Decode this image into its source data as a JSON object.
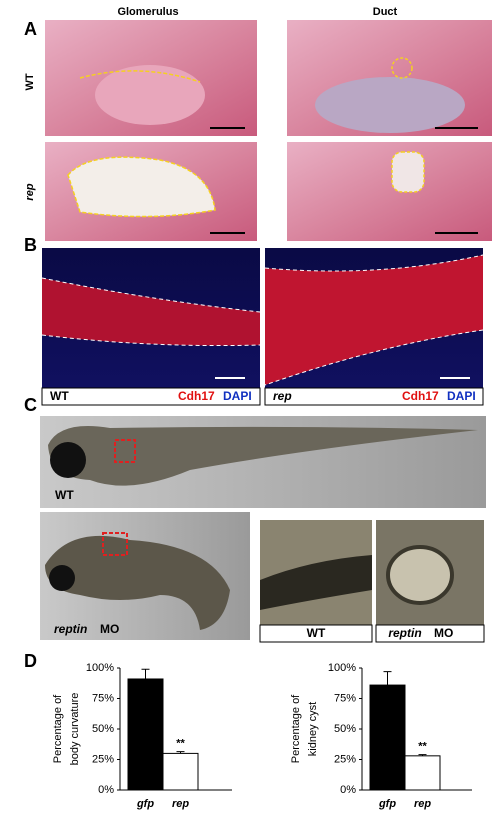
{
  "panels": {
    "A": {
      "label": "A",
      "columns": [
        "Glomerulus",
        "Duct"
      ],
      "rows": [
        "WT",
        "rep"
      ]
    },
    "B": {
      "label": "B",
      "captions": [
        {
          "genotype": "WT",
          "stain1": "Cdh17",
          "stain2": "DAPI"
        },
        {
          "genotype": "rep",
          "stain1": "Cdh17",
          "stain2": "DAPI"
        }
      ]
    },
    "C": {
      "label": "C",
      "wt": "WT",
      "mo_gene": "reptin",
      "mo_suffix": "MO",
      "inset_captions": [
        {
          "gene": "WT"
        },
        {
          "gene": "reptin",
          "suffix": "MO"
        }
      ]
    },
    "D": {
      "label": "D"
    }
  },
  "chart_data": [
    {
      "type": "bar",
      "y_label": [
        "Percentage of",
        "body curvature"
      ],
      "categories": [
        "gfp",
        "rep"
      ],
      "values": [
        91,
        30
      ],
      "errors": [
        8,
        1.5
      ],
      "colors": [
        "#000000",
        "#ffffff"
      ],
      "annotation": "**",
      "ylim": [
        0,
        100
      ],
      "yticks": [
        {
          "value": 0,
          "label": "0%"
        },
        {
          "value": 25,
          "label": "25%"
        },
        {
          "value": 50,
          "label": "50%"
        },
        {
          "value": 75,
          "label": "75%"
        },
        {
          "value": 100,
          "label": "100%"
        }
      ]
    },
    {
      "type": "bar",
      "y_label": [
        "Percentage of",
        "kidney cyst"
      ],
      "categories": [
        "gfp",
        "rep"
      ],
      "values": [
        86,
        28
      ],
      "errors": [
        11,
        1
      ],
      "colors": [
        "#000000",
        "#ffffff"
      ],
      "annotation": "**",
      "ylim": [
        0,
        100
      ],
      "yticks": [
        {
          "value": 0,
          "label": "0%"
        },
        {
          "value": 25,
          "label": "25%"
        },
        {
          "value": 50,
          "label": "50%"
        },
        {
          "value": 75,
          "label": "75%"
        },
        {
          "value": 100,
          "label": "100%"
        }
      ]
    }
  ]
}
